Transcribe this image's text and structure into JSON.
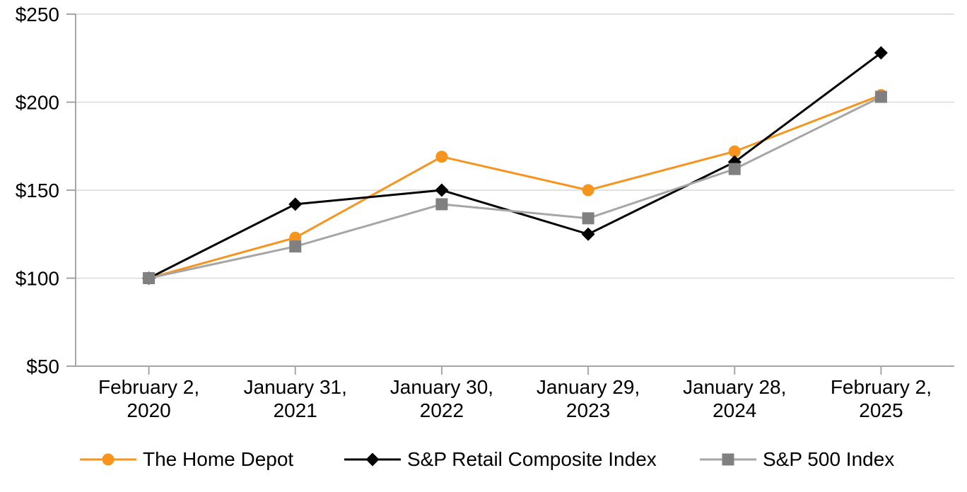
{
  "chart_data": {
    "type": "line",
    "title": "",
    "categories": [
      "February 2, 2020",
      "January 31, 2021",
      "January 30, 2022",
      "January 29, 2023",
      "January 28, 2024",
      "February 2, 2025"
    ],
    "series": [
      {
        "name": "The Home Depot",
        "values": [
          100,
          123,
          169,
          150,
          172,
          204
        ],
        "color": "#F7941E",
        "marker_color": "#F7941E",
        "marker": "circle"
      },
      {
        "name": "S&P Retail Composite Index",
        "values": [
          100,
          142,
          150,
          125,
          166,
          228
        ],
        "color": "#000000",
        "marker_color": "#000000",
        "marker": "diamond"
      },
      {
        "name": "S&P 500 Index",
        "values": [
          100,
          118,
          142,
          134,
          162,
          203
        ],
        "color": "#A6A6A6",
        "marker_color": "#808080",
        "marker": "square"
      }
    ],
    "ylim": [
      50,
      250
    ],
    "ytick_step": 50,
    "ytick_labels": [
      "$50",
      "$100",
      "$150",
      "$200",
      "$250"
    ],
    "grid": true,
    "gridline_color": "#D9D9D9",
    "axis_color": "#A6A6A6",
    "text_color": "#000000",
    "background": "#FFFFFF",
    "legend_position": "bottom"
  }
}
